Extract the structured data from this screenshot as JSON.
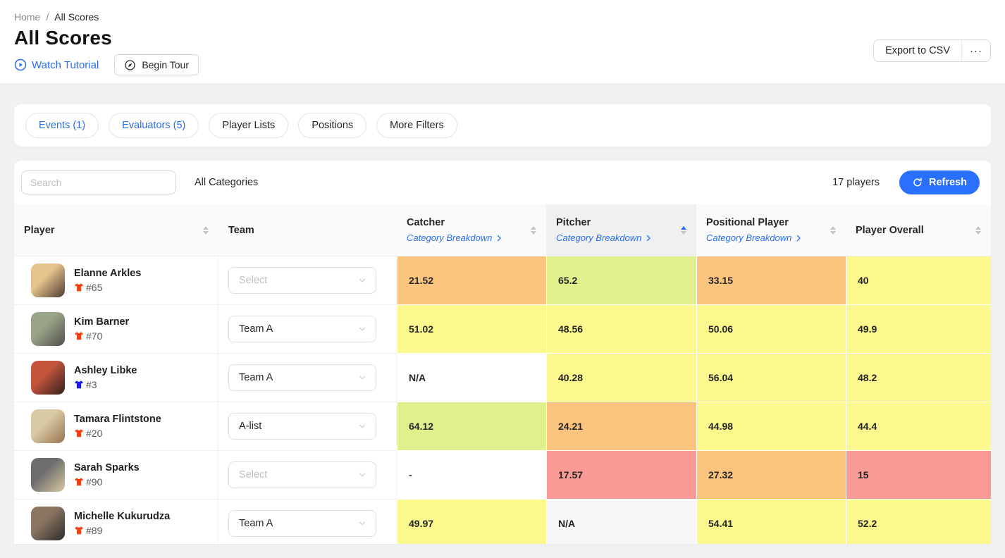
{
  "breadcrumb": {
    "home": "Home",
    "separator": "/",
    "current": "All Scores"
  },
  "page": {
    "title": "All Scores"
  },
  "actions": {
    "watch_tutorial": "Watch Tutorial",
    "begin_tour": "Begin Tour",
    "export_csv": "Export to CSV",
    "more": "···"
  },
  "filters": [
    {
      "label": "Events (1)",
      "active": true
    },
    {
      "label": "Evaluators (5)",
      "active": true
    },
    {
      "label": "Player Lists",
      "active": false
    },
    {
      "label": "Positions",
      "active": false
    },
    {
      "label": "More Filters",
      "active": false
    }
  ],
  "toolbar": {
    "search_placeholder": "Search",
    "category_filter": "All Categories",
    "player_count": "17 players",
    "refresh": "Refresh"
  },
  "colors": {
    "accent_link": "#2a6ff1",
    "refresh_button": "#2970ff",
    "score_tones": {
      "low": "#f99b94",
      "mid_low": "#fac47e",
      "mid": "#fbf88d",
      "high": "#e0f08d",
      "na": "#ffffff",
      "na_sorted": "#f7f7f7"
    },
    "jersey_red": "#ff3d0d",
    "jersey_blue": "#1a1af0"
  },
  "table": {
    "columns": [
      {
        "label": "Player",
        "sortable": true
      },
      {
        "label": "Team",
        "sortable": false
      },
      {
        "label": "Catcher",
        "sortable": true,
        "breakdown": "Category Breakdown"
      },
      {
        "label": "Pitcher",
        "sortable": true,
        "breakdown": "Category Breakdown",
        "sorted": "ascend"
      },
      {
        "label": "Positional Player",
        "sortable": true,
        "breakdown": "Category Breakdown"
      },
      {
        "label": "Player Overall",
        "sortable": true
      }
    ],
    "rows": [
      {
        "name": "Elanne Arkles",
        "jersey": "#65",
        "jersey_color": "red",
        "team": "Select",
        "team_is_placeholder": true,
        "avatar": [
          "#e7c48e",
          "#4a3b30"
        ],
        "scores": [
          {
            "value": "21.52",
            "tone": "mid_low"
          },
          {
            "value": "65.2",
            "tone": "high"
          },
          {
            "value": "33.15",
            "tone": "mid_low"
          },
          {
            "value": "40",
            "tone": "mid"
          }
        ]
      },
      {
        "name": "Kim Barner",
        "jersey": "#70",
        "jersey_color": "red",
        "team": "Team A",
        "team_is_placeholder": false,
        "avatar": [
          "#9aa486",
          "#4f4f4f"
        ],
        "scores": [
          {
            "value": "51.02",
            "tone": "mid"
          },
          {
            "value": "48.56",
            "tone": "mid"
          },
          {
            "value": "50.06",
            "tone": "mid"
          },
          {
            "value": "49.9",
            "tone": "mid"
          }
        ]
      },
      {
        "name": "Ashley Libke",
        "jersey": "#3",
        "jersey_color": "blue",
        "team": "Team A",
        "team_is_placeholder": false,
        "avatar": [
          "#c4543c",
          "#32201e"
        ],
        "scores": [
          {
            "value": "N/A",
            "tone": "na"
          },
          {
            "value": "40.28",
            "tone": "mid"
          },
          {
            "value": "56.04",
            "tone": "mid"
          },
          {
            "value": "48.2",
            "tone": "mid"
          }
        ]
      },
      {
        "name": "Tamara Flintstone",
        "jersey": "#20",
        "jersey_color": "red",
        "team": "A-list",
        "team_is_placeholder": false,
        "avatar": [
          "#d8cba6",
          "#97724d"
        ],
        "scores": [
          {
            "value": "64.12",
            "tone": "high"
          },
          {
            "value": "24.21",
            "tone": "mid_low"
          },
          {
            "value": "44.98",
            "tone": "mid"
          },
          {
            "value": "44.4",
            "tone": "mid"
          }
        ]
      },
      {
        "name": "Sarah Sparks",
        "jersey": "#90",
        "jersey_color": "red",
        "team": "Select",
        "team_is_placeholder": true,
        "avatar": [
          "#6e6e6e",
          "#d9c9a2"
        ],
        "scores": [
          {
            "value": "-",
            "tone": "na"
          },
          {
            "value": "17.57",
            "tone": "low"
          },
          {
            "value": "27.32",
            "tone": "mid_low"
          },
          {
            "value": "15",
            "tone": "low"
          }
        ]
      },
      {
        "name": "Michelle Kukurudza",
        "jersey": "#89",
        "jersey_color": "red",
        "team": "Team A",
        "team_is_placeholder": false,
        "avatar": [
          "#8a7561",
          "#2c2c2c"
        ],
        "scores": [
          {
            "value": "49.97",
            "tone": "mid"
          },
          {
            "value": "N/A",
            "tone": "na_sorted"
          },
          {
            "value": "54.41",
            "tone": "mid"
          },
          {
            "value": "52.2",
            "tone": "mid"
          }
        ]
      }
    ],
    "partial_row": {
      "avatar": [
        "#e8b87a",
        "#c98950"
      ],
      "scores": [
        {
          "value": "",
          "tone": "mid"
        },
        {
          "value": "",
          "tone": "na_sorted"
        },
        {
          "value": "",
          "tone": "mid"
        },
        {
          "value": "",
          "tone": "mid"
        }
      ]
    }
  }
}
